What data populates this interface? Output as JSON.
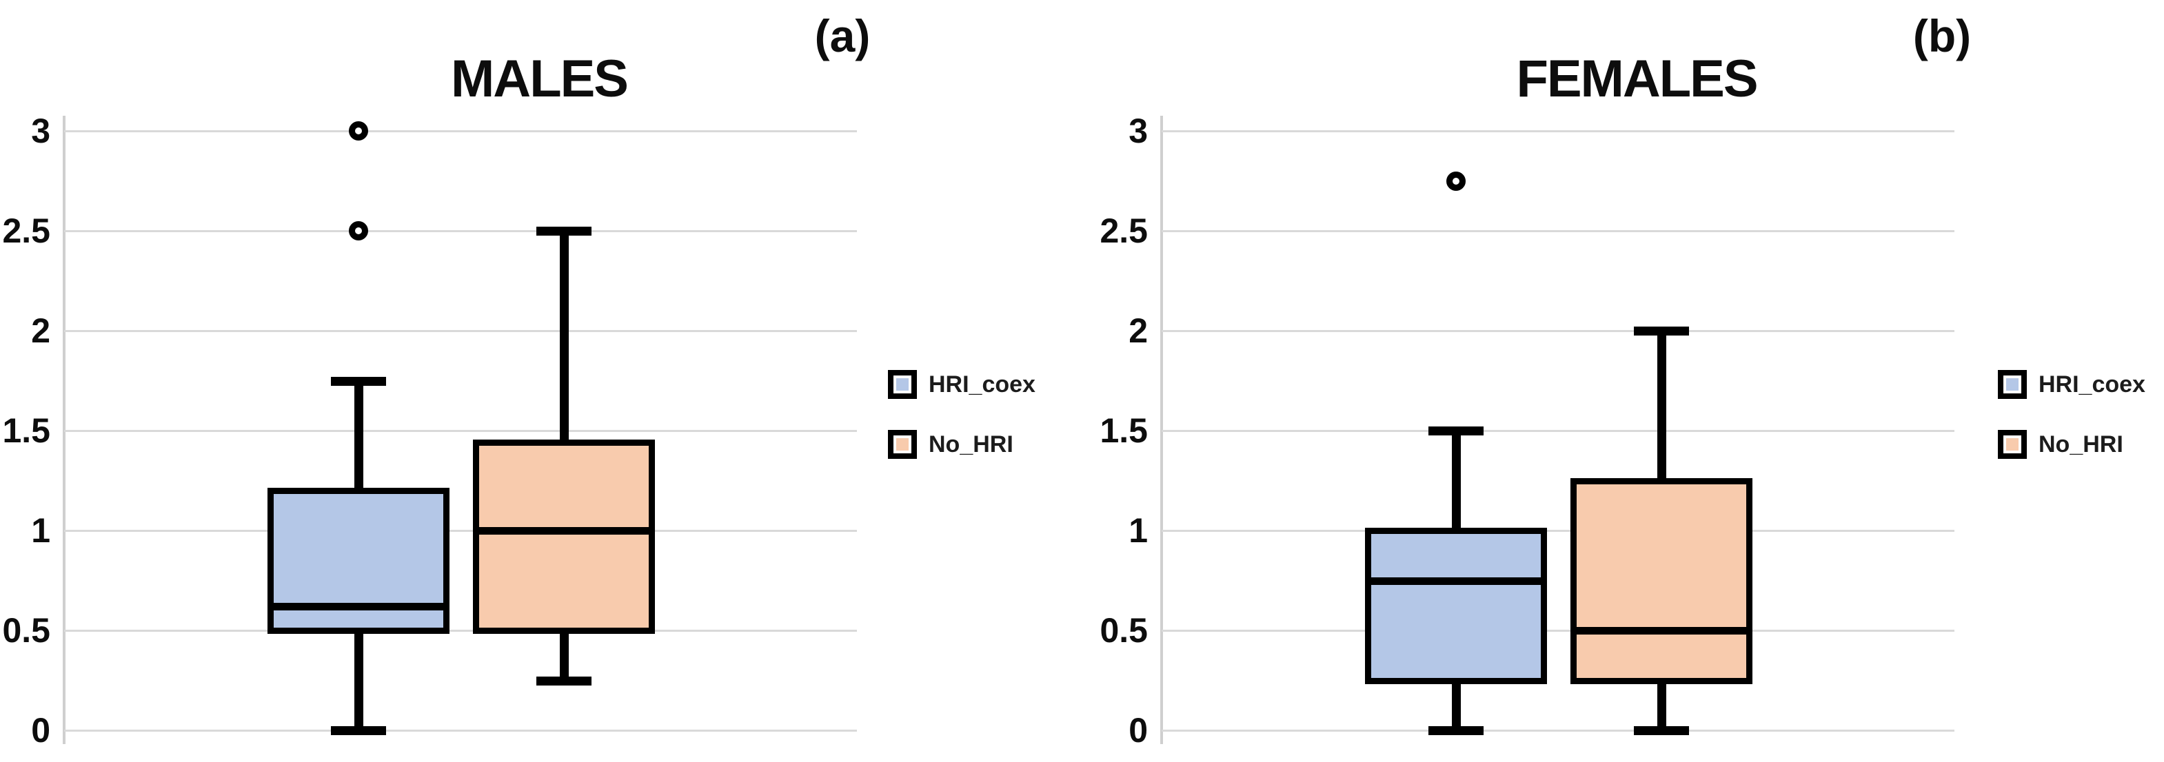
{
  "figure": {
    "background_color": "#ffffff",
    "gridline_color": "#d9d9d9",
    "axis_line_color": "#cfcfcf",
    "stroke_color": "#000000"
  },
  "chart_data": [
    {
      "type": "boxplot",
      "title": "MALES",
      "panel_label": "(a)",
      "xlabel": "",
      "ylabel": "",
      "ylim": [
        0,
        3.1
      ],
      "grid": true,
      "legend_position": "right",
      "yticks": [
        {
          "value": 3,
          "label": "3"
        },
        {
          "value": 2.5,
          "label": "2.5"
        },
        {
          "value": 2,
          "label": "2"
        },
        {
          "value": 1.5,
          "label": "1.5"
        },
        {
          "value": 1,
          "label": "1"
        },
        {
          "value": 0.5,
          "label": "0.5"
        },
        {
          "value": 0,
          "label": "0"
        }
      ],
      "series": [
        {
          "name": "HRI_coex",
          "fill_color": "#b4c7e7",
          "line_color": "#000000",
          "whisker_low": 0,
          "q1": 0.5,
          "median": 0.62,
          "q3": 1.2,
          "whisker_high": 1.75,
          "outliers": [
            3,
            2.5
          ]
        },
        {
          "name": "No_HRI",
          "fill_color": "#f8cbad",
          "line_color": "#000000",
          "whisker_low": 0.25,
          "q1": 0.5,
          "median": 1,
          "q3": 1.44,
          "whisker_high": 2.5,
          "outliers": []
        }
      ]
    },
    {
      "type": "boxplot",
      "title": "FEMALES",
      "panel_label": "(b)",
      "xlabel": "",
      "ylabel": "",
      "ylim": [
        0,
        3.1
      ],
      "grid": true,
      "legend_position": "right",
      "yticks": [
        {
          "value": 3,
          "label": "3"
        },
        {
          "value": 2.5,
          "label": "2.5"
        },
        {
          "value": 2,
          "label": "2"
        },
        {
          "value": 1.5,
          "label": "1.5"
        },
        {
          "value": 1,
          "label": "1"
        },
        {
          "value": 0.5,
          "label": "0.5"
        },
        {
          "value": 0,
          "label": "0"
        }
      ],
      "series": [
        {
          "name": "HRI_coex",
          "fill_color": "#b4c7e7",
          "line_color": "#000000",
          "whisker_low": 0,
          "q1": 0.25,
          "median": 0.75,
          "q3": 1,
          "whisker_high": 1.5,
          "outliers": [
            2.75
          ]
        },
        {
          "name": "No_HRI",
          "fill_color": "#f8cbad",
          "line_color": "#000000",
          "whisker_low": 0,
          "q1": 0.25,
          "median": 0.5,
          "q3": 1.25,
          "whisker_high": 2,
          "outliers": []
        }
      ]
    }
  ]
}
